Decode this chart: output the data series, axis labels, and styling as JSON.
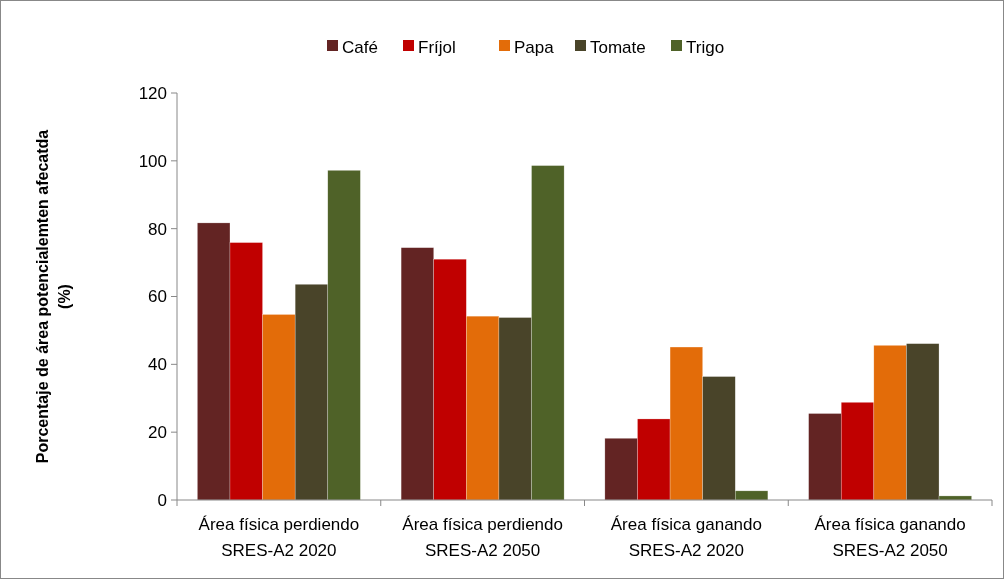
{
  "chart_data": {
    "type": "bar",
    "ylabel": "Porcentaje de área potencialemten afecatda\n(%)",
    "categories": [
      "Área física perdiendo\nSRES-A2 2020",
      "Área física perdiendo\nSRES-A2 2050",
      "Área física ganando\nSRES-A2 2020",
      "Área física ganando\nSRES-A2 2050"
    ],
    "series": [
      {
        "name": "Café",
        "color": "#632423",
        "values": [
          81.7,
          74.4,
          18.2,
          25.5
        ]
      },
      {
        "name": "Fríjol",
        "color": "#c00000",
        "values": [
          75.9,
          71.0,
          23.9,
          28.8
        ]
      },
      {
        "name": "Papa",
        "color": "#e36c09",
        "values": [
          54.7,
          54.2,
          45.1,
          45.6
        ]
      },
      {
        "name": "Tomate",
        "color": "#494429",
        "values": [
          63.6,
          53.8,
          36.4,
          46.1
        ]
      },
      {
        "name": "Trigo",
        "color": "#4f6228",
        "values": [
          97.2,
          98.6,
          2.7,
          1.2
        ]
      }
    ],
    "ylim": [
      0,
      120
    ],
    "yticks": [
      0,
      20,
      40,
      60,
      80,
      100,
      120
    ],
    "grid": false,
    "legend": "top"
  }
}
